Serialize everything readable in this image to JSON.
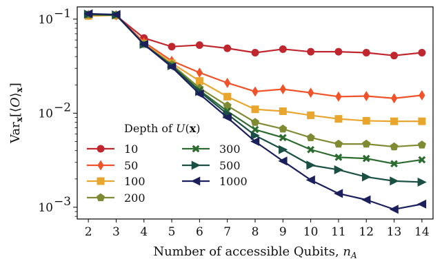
{
  "chart_data": {
    "type": "line",
    "xlabel": "Number of accessible Qubits, n_A",
    "ylabel": "Var_x[⟨O⟩_x]",
    "yscale": "log",
    "xlim": [
      1.6,
      14.4
    ],
    "ylim": [
      0.00075,
      0.135
    ],
    "x": [
      2,
      3,
      4,
      5,
      6,
      7,
      8,
      9,
      10,
      11,
      12,
      13,
      14
    ],
    "xticks": [
      "2",
      "3",
      "4",
      "5",
      "6",
      "7",
      "8",
      "9",
      "10",
      "11",
      "12",
      "13",
      "14"
    ],
    "yticks": [
      {
        "value": 0.1,
        "base": "10",
        "exp": "−1"
      },
      {
        "value": 0.01,
        "base": "10",
        "exp": "−2"
      },
      {
        "value": 0.001,
        "base": "10",
        "exp": "−3"
      }
    ],
    "grid": false,
    "legend": {
      "title": "Depth of U(x)",
      "placement": "lower-left",
      "ncol": 2
    },
    "series": [
      {
        "name": "10",
        "color": "#c0262e",
        "marker": "circle",
        "values": [
          0.112,
          0.109,
          0.063,
          0.051,
          0.053,
          0.049,
          0.044,
          0.048,
          0.045,
          0.045,
          0.044,
          0.041,
          0.044
        ]
      },
      {
        "name": "50",
        "color": "#f0522a",
        "marker": "diamond",
        "values": [
          0.111,
          0.11,
          0.057,
          0.036,
          0.027,
          0.021,
          0.017,
          0.018,
          0.0165,
          0.015,
          0.0152,
          0.0144,
          0.0155
        ]
      },
      {
        "name": "100",
        "color": "#e9a62e",
        "marker": "square",
        "values": [
          0.108,
          0.11,
          0.055,
          0.034,
          0.022,
          0.015,
          0.011,
          0.0105,
          0.0095,
          0.0087,
          0.0083,
          0.0082,
          0.0082
        ]
      },
      {
        "name": "200",
        "color": "#7f8a33",
        "marker": "pentagon",
        "values": [
          0.111,
          0.111,
          0.054,
          0.033,
          0.0185,
          0.012,
          0.008,
          0.0068,
          0.0055,
          0.0047,
          0.0047,
          0.0044,
          0.0046
        ]
      },
      {
        "name": "300",
        "color": "#2c6b2f",
        "marker": "x",
        "values": [
          0.112,
          0.11,
          0.054,
          0.032,
          0.0175,
          0.0105,
          0.0067,
          0.0055,
          0.0041,
          0.0034,
          0.0033,
          0.0029,
          0.0032
        ]
      },
      {
        "name": "500",
        "color": "#1a4f44",
        "marker": "triangle-right",
        "values": [
          0.113,
          0.111,
          0.054,
          0.032,
          0.017,
          0.0098,
          0.0058,
          0.0041,
          0.0028,
          0.0025,
          0.0021,
          0.0019,
          0.00185
        ]
      },
      {
        "name": "1000",
        "color": "#1b1f5c",
        "marker": "triangle-left",
        "values": [
          0.114,
          0.112,
          0.054,
          0.031,
          0.016,
          0.009,
          0.005,
          0.0031,
          0.00195,
          0.0014,
          0.0012,
          0.00095,
          0.00108
        ]
      }
    ]
  }
}
